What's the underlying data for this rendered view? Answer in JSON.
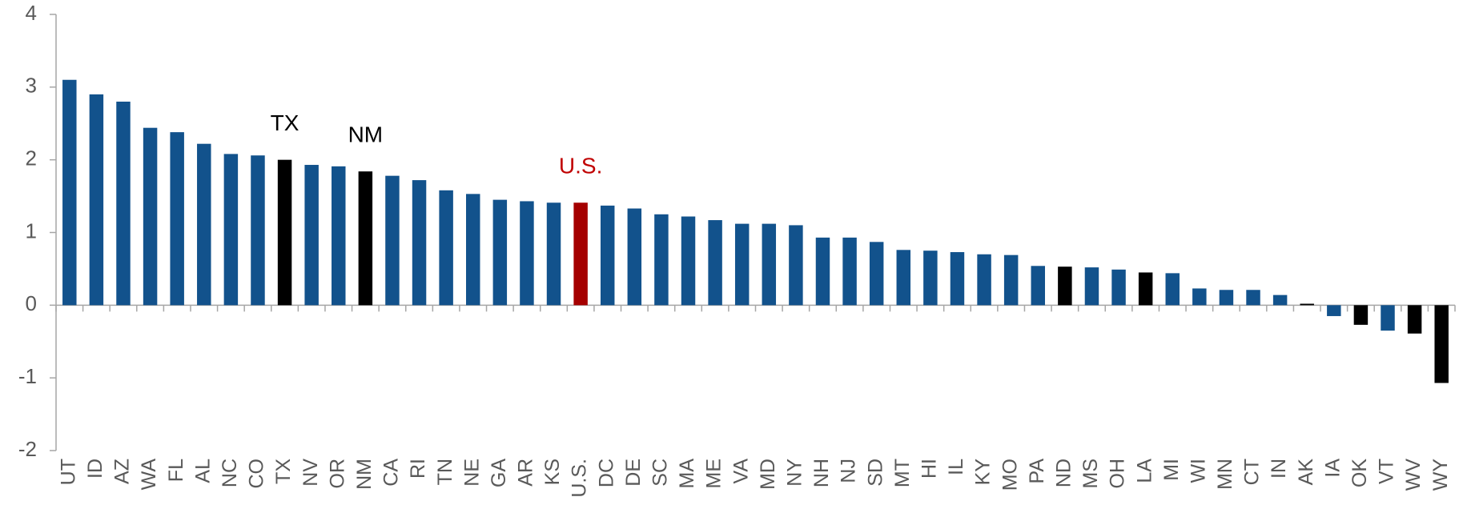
{
  "chart_data": {
    "type": "bar",
    "categories": [
      "UT",
      "ID",
      "AZ",
      "WA",
      "FL",
      "AL",
      "NC",
      "CO",
      "TX",
      "NV",
      "OR",
      "NM",
      "CA",
      "RI",
      "TN",
      "NE",
      "GA",
      "AR",
      "KS",
      "U.S.",
      "DC",
      "DE",
      "SC",
      "MA",
      "ME",
      "VA",
      "MD",
      "NY",
      "NH",
      "NJ",
      "SD",
      "MT",
      "HI",
      "IL",
      "KY",
      "MO",
      "PA",
      "ND",
      "MS",
      "OH",
      "LA",
      "MI",
      "WI",
      "MN",
      "CT",
      "IN",
      "AK",
      "IA",
      "OK",
      "VT",
      "WV",
      "WY"
    ],
    "values": [
      3.1,
      2.9,
      2.8,
      2.44,
      2.38,
      2.22,
      2.08,
      2.06,
      2.0,
      1.93,
      1.91,
      1.84,
      1.78,
      1.72,
      1.58,
      1.53,
      1.45,
      1.43,
      1.41,
      1.41,
      1.37,
      1.33,
      1.25,
      1.22,
      1.17,
      1.12,
      1.12,
      1.1,
      0.93,
      0.93,
      0.87,
      0.76,
      0.75,
      0.73,
      0.7,
      0.69,
      0.54,
      0.53,
      0.52,
      0.49,
      0.45,
      0.44,
      0.23,
      0.21,
      0.21,
      0.14,
      0.02,
      -0.15,
      -0.27,
      -0.35,
      -0.39,
      -1.07
    ],
    "colors": [
      "#12528c",
      "#12528c",
      "#12528c",
      "#12528c",
      "#12528c",
      "#12528c",
      "#12528c",
      "#12528c",
      "#000000",
      "#12528c",
      "#12528c",
      "#000000",
      "#12528c",
      "#12528c",
      "#12528c",
      "#12528c",
      "#12528c",
      "#12528c",
      "#12528c",
      "#a50000",
      "#12528c",
      "#12528c",
      "#12528c",
      "#12528c",
      "#12528c",
      "#12528c",
      "#12528c",
      "#12528c",
      "#12528c",
      "#12528c",
      "#12528c",
      "#12528c",
      "#12528c",
      "#12528c",
      "#12528c",
      "#12528c",
      "#12528c",
      "#000000",
      "#12528c",
      "#12528c",
      "#000000",
      "#12528c",
      "#12528c",
      "#12528c",
      "#12528c",
      "#12528c",
      "#000000",
      "#12528c",
      "#000000",
      "#12528c",
      "#000000",
      "#000000"
    ],
    "annotations": [
      {
        "text": "TX",
        "x": "TX",
        "color": "#000000"
      },
      {
        "text": "NM",
        "x": "NM",
        "color": "#000000"
      },
      {
        "text": "U.S.",
        "x": "U.S.",
        "color": "#c00000"
      }
    ],
    "ylim": [
      -2,
      4
    ],
    "yticks": [
      -2,
      -1,
      0,
      1,
      2,
      3,
      4
    ]
  }
}
